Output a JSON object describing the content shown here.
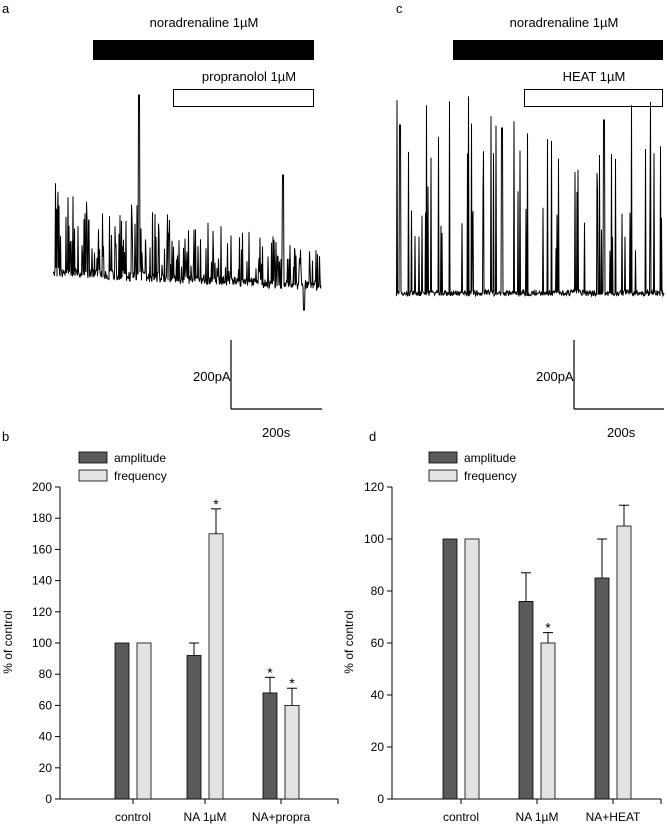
{
  "colors": {
    "amplitude": "#5a5a5a",
    "frequency": "#e3e3e3",
    "trace": "#000000",
    "bar_outline": "#000000"
  },
  "panel_a": {
    "label": "a",
    "drug1_label": "noradrenaline 1µM",
    "drug2_label": "propranolol 1µM",
    "scale_y_label": "200pA",
    "scale_x_label": "200s"
  },
  "panel_c": {
    "label": "c",
    "drug1_label": "noradrenaline 1µM",
    "drug2_label": "HEAT 1µM",
    "scale_y_label": "200pA",
    "scale_x_label": "200s"
  },
  "chart_data": [
    {
      "panel": "b",
      "type": "bar",
      "categories": [
        "control",
        "NA 1µM",
        "NA+propra"
      ],
      "series": [
        {
          "name": "amplitude",
          "values": [
            100,
            92,
            68
          ],
          "errors": [
            0,
            8,
            10
          ],
          "significant": [
            false,
            false,
            true
          ]
        },
        {
          "name": "frequency",
          "values": [
            100,
            170,
            60
          ],
          "errors": [
            0,
            16,
            11
          ],
          "significant": [
            false,
            true,
            true
          ]
        }
      ],
      "ylabel": "% of control",
      "ylim": [
        0,
        200
      ],
      "yticks": [
        0,
        20,
        40,
        60,
        80,
        100,
        120,
        140,
        160,
        180,
        200
      ],
      "legend": "top-left",
      "significance_marker": "*"
    },
    {
      "panel": "d",
      "type": "bar",
      "categories": [
        "control",
        "NA 1µM",
        "NA+HEAT"
      ],
      "series": [
        {
          "name": "amplitude",
          "values": [
            100,
            76,
            85
          ],
          "errors": [
            0,
            11,
            15
          ],
          "significant": [
            false,
            false,
            false
          ]
        },
        {
          "name": "frequency",
          "values": [
            100,
            60,
            105
          ],
          "errors": [
            0,
            4,
            8
          ],
          "significant": [
            false,
            true,
            false
          ]
        }
      ],
      "ylabel": "% of control",
      "ylim": [
        0,
        120
      ],
      "yticks": [
        0,
        20,
        40,
        60,
        80,
        100,
        120
      ],
      "legend": "top-left",
      "significance_marker": "*"
    }
  ]
}
